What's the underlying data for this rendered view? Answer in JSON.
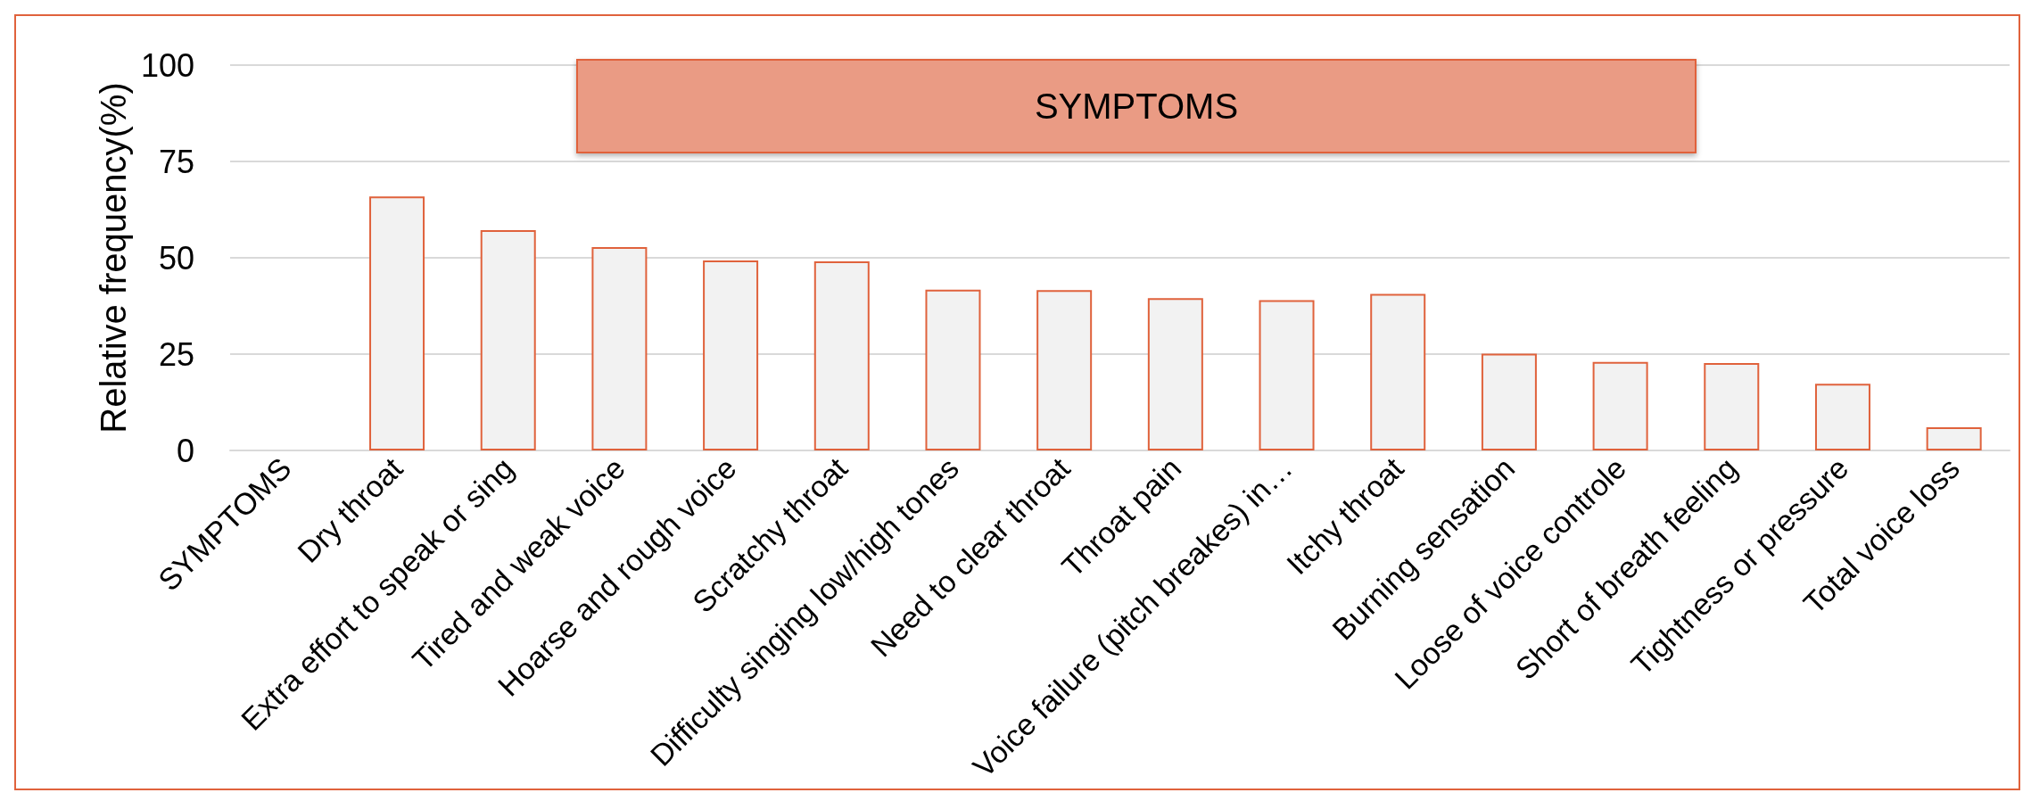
{
  "chart_data": {
    "type": "bar",
    "title": "SYMPTOMS",
    "ylabel": "Relative frequency(%)",
    "categories": [
      "SYMPTOMS",
      "Dry throat",
      "Extra effort to speak or sing",
      "Tired and weak voice",
      "Hoarse and rough voice",
      "Scratchy throat",
      "Difficulty singing low/high tones",
      "Need to clear throat",
      "Throat pain",
      "Voice failure (pitch breakes) in…",
      "Itchy throat",
      "Burning sensation",
      "Loose of voice controle",
      "Short of breath feeling",
      "Tightness or pressure",
      "Total voice loss"
    ],
    "values": [
      null,
      65.9,
      57.2,
      52.8,
      49.3,
      49.1,
      41.7,
      41.6,
      39.5,
      39.0,
      40.6,
      25.1,
      23.0,
      22.7,
      17.3,
      6.0
    ],
    "color": "#f2f2f2",
    "ylim": [
      0,
      100
    ],
    "yticks": [
      0,
      25,
      50,
      75,
      100
    ],
    "grid": "y"
  }
}
